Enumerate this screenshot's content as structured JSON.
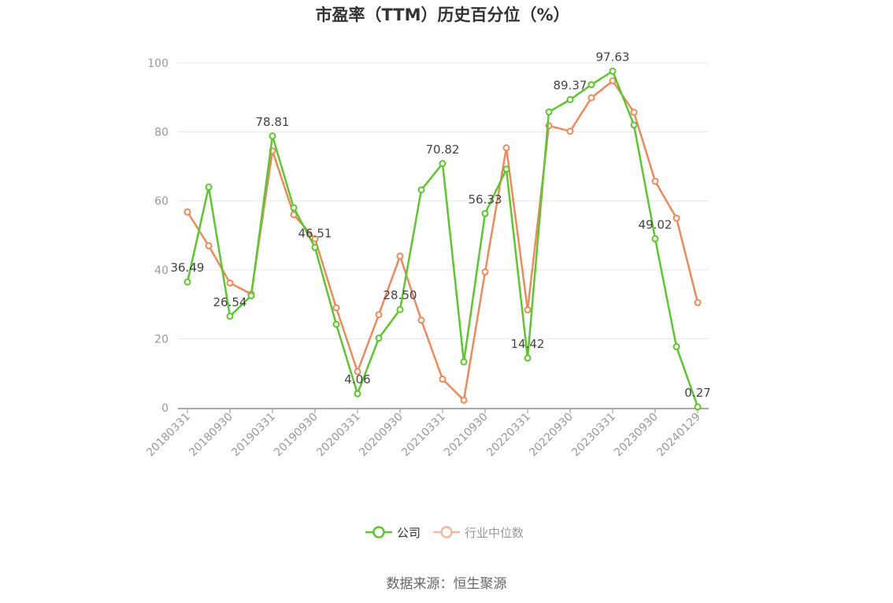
{
  "chart_data": {
    "type": "line",
    "title": "市盈率（TTM）历史百分位（%）",
    "source": "数据来源：恒生聚源",
    "ylim": [
      0,
      100
    ],
    "yticks": [
      0,
      20,
      40,
      60,
      80,
      100
    ],
    "grid": true,
    "legend_position": "bottom-center",
    "x": [
      "20180331",
      "20180630",
      "20180930",
      "20181231",
      "20190331",
      "20190630",
      "20190930",
      "20191231",
      "20200331",
      "20200630",
      "20200930",
      "20201231",
      "20210331",
      "20210630",
      "20210930",
      "20211231",
      "20220331",
      "20220630",
      "20220930",
      "20221231",
      "20230331",
      "20230630",
      "20230930",
      "20231231",
      "20240129"
    ],
    "xticks": [
      "20180331",
      "20180930",
      "20190331",
      "20190930",
      "20200331",
      "20200930",
      "20210331",
      "20210930",
      "20220331",
      "20220930",
      "20230331",
      "20230930",
      "20240129"
    ],
    "series": [
      {
        "name": "公司",
        "color": "#5ac82a",
        "values": [
          36.49,
          64.0,
          26.54,
          32.5,
          78.81,
          58.0,
          46.51,
          24.2,
          4.06,
          20.2,
          28.5,
          63.2,
          70.82,
          13.3,
          56.33,
          69.2,
          14.42,
          85.8,
          89.37,
          93.7,
          97.63,
          82.0,
          49.02,
          17.7,
          0.27
        ]
      },
      {
        "name": "行业中位数",
        "color": "#f0895a",
        "values": [
          56.8,
          47.0,
          36.2,
          33.0,
          74.5,
          56.0,
          49.0,
          29.0,
          10.5,
          27.0,
          44.0,
          25.4,
          8.3,
          2.2,
          39.4,
          75.4,
          28.4,
          81.8,
          80.2,
          89.9,
          94.8,
          85.7,
          65.7,
          55.0,
          30.5
        ]
      }
    ],
    "labels": [
      {
        "index": 0,
        "series": 0,
        "text": "36.49"
      },
      {
        "index": 2,
        "series": 0,
        "text": "26.54"
      },
      {
        "index": 4,
        "series": 0,
        "text": "78.81"
      },
      {
        "index": 6,
        "series": 0,
        "text": "46.51"
      },
      {
        "index": 8,
        "series": 0,
        "text": "4.06"
      },
      {
        "index": 10,
        "series": 0,
        "text": "28.50"
      },
      {
        "index": 12,
        "series": 0,
        "text": "70.82"
      },
      {
        "index": 14,
        "series": 0,
        "text": "56.33"
      },
      {
        "index": 16,
        "series": 0,
        "text": "14.42"
      },
      {
        "index": 18,
        "series": 0,
        "text": "89.37"
      },
      {
        "index": 20,
        "series": 0,
        "text": "97.63"
      },
      {
        "index": 22,
        "series": 0,
        "text": "49.02"
      },
      {
        "index": 24,
        "series": 0,
        "text": "0.27"
      }
    ]
  }
}
